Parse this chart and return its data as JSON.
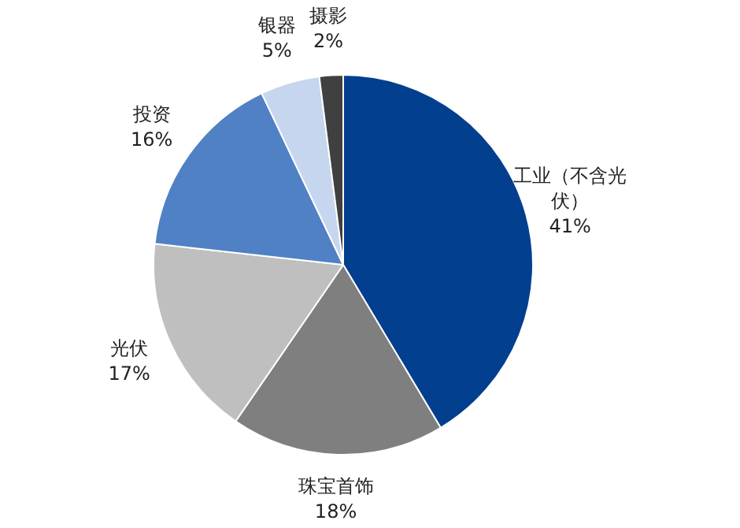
{
  "chart_data": {
    "type": "pie",
    "categories": [
      "工业（不含光伏）",
      "珠宝首饰",
      "光伏",
      "投资",
      "银器",
      "摄影"
    ],
    "values": [
      41,
      18,
      17,
      16,
      5,
      2
    ],
    "value_labels": [
      "41%",
      "18%",
      "17%",
      "16%",
      "5%",
      "2%"
    ],
    "colors": [
      "#023f8f",
      "#7f7f7f",
      "#bfbfbf",
      "#4f81c4",
      "#c6d6ee",
      "#404040"
    ],
    "legend": false
  }
}
